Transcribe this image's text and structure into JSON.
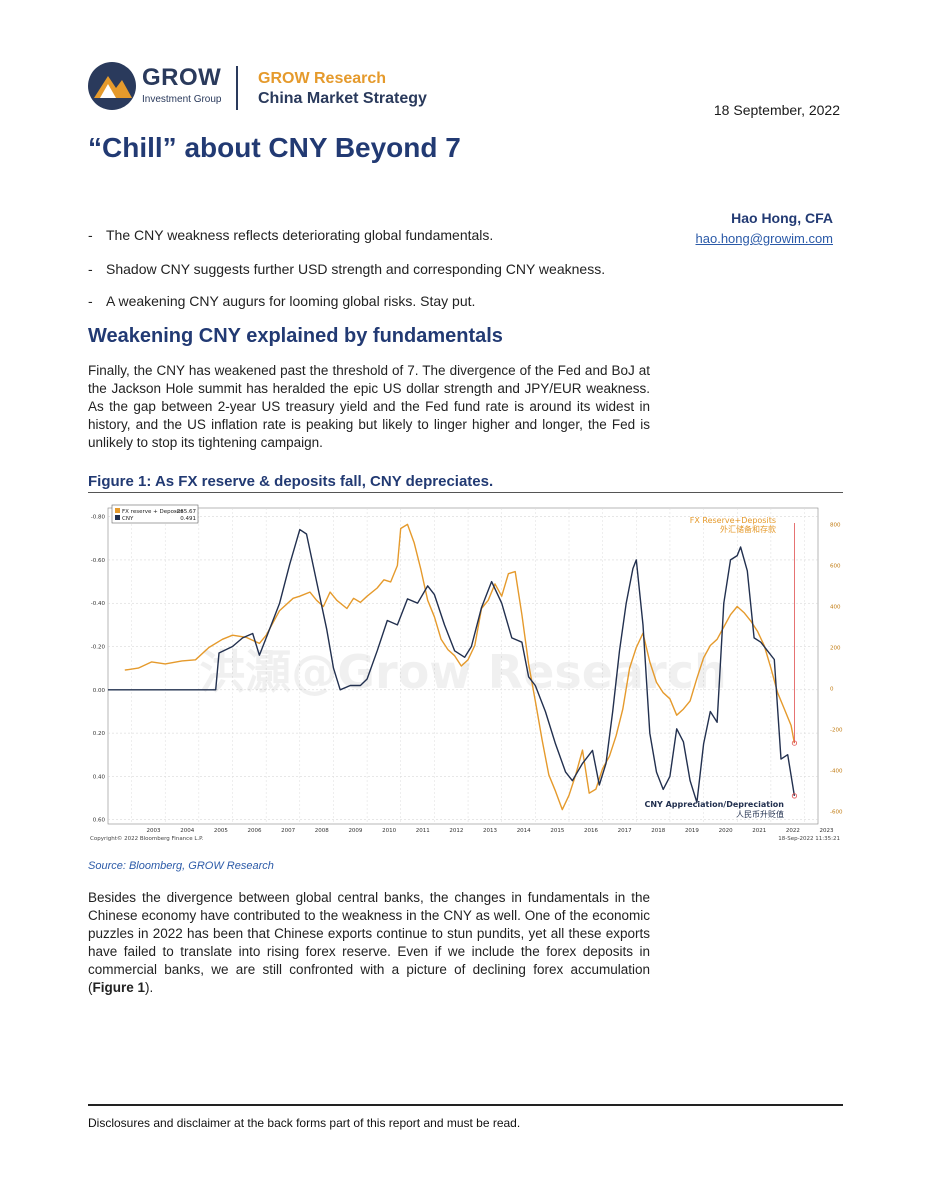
{
  "header": {
    "logo_name": "GROW",
    "logo_sub": "Investment Group",
    "brand_line1": "GROW Research",
    "brand_line2": "China Market Strategy",
    "date": "18 September, 2022",
    "colors": {
      "navy": "#223a73",
      "orange": "#e59a2c"
    }
  },
  "title": "“Chill” about CNY Beyond 7",
  "author": {
    "name": "Hao Hong, CFA",
    "email": "hao.hong@growim.com"
  },
  "bullets": [
    "The CNY weakness reflects deteriorating global fundamentals.",
    "Shadow CNY suggests further USD strength and corresponding CNY weakness.",
    "A weakening CNY augurs for looming global risks. Stay put."
  ],
  "section_heading": "Weakening CNY explained by fundamentals",
  "para1": "Finally, the CNY has weakened past the threshold of 7. The divergence of the Fed and BoJ at the Jackson Hole summit has heralded the epic US dollar strength and JPY/EUR weakness. As the gap between 2-year US treasury yield and the Fed fund rate is around its widest in history, and the US inflation rate is peaking but likely to linger higher and longer, the Fed is unlikely to stop its tightening campaign.",
  "figure_title": "Figure 1: As FX reserve & deposits fall, CNY depreciates.",
  "source": "Source: Bloomberg, GROW Research",
  "para2_before": "Besides the divergence between global central banks, the changes in fundamentals in the Chinese economy have contributed to the weakness in the CNY as well. One of the economic puzzles in 2022 has been that Chinese exports continue to stun pundits, yet all these exports have failed to translate into rising forex reserve. Even if we include the forex deposits in commercial banks, we are still confronted with a picture of declining forex accumulation (",
  "para2_bold": "Figure 1",
  "para2_after": ").",
  "footer": "Disclosures and disclaimer at the back forms part of this report and must be read.",
  "chart_data": {
    "type": "line",
    "title": "",
    "watermark": "洪灝@Grow Research",
    "annotation_top": "FX Reserve+Deposits",
    "annotation_top_cn": "外汇储备和存款",
    "annotation_bottom": "CNY Appreciation/Depreciation",
    "annotation_bottom_cn": "人民币升贬值",
    "legend": [
      {
        "name": "FX reserve + Deposits",
        "value": "-265.67",
        "color": "#e59a2c"
      },
      {
        "name": "CNY",
        "value": "0.491",
        "color": "#22304f"
      }
    ],
    "copyright": "Copyright© 2022 Bloomberg Finance L.P.",
    "timestamp": "18-Sep-2022 11:35:21",
    "x_labels": [
      "2003",
      "2004",
      "2005",
      "2006",
      "2007",
      "2008",
      "2009",
      "2010",
      "2011",
      "2012",
      "2013",
      "2014",
      "2015",
      "2016",
      "2017",
      "2018",
      "2019",
      "2020",
      "2021",
      "2022",
      "2023"
    ],
    "xlim": [
      2002.3,
      2023.4
    ],
    "left_axis": {
      "ylim": [
        -0.84,
        0.62
      ],
      "inverted": true,
      "ticks": [
        "-0.80",
        "-0.60",
        "-0.40",
        "-0.20",
        "0.00",
        "0.20",
        "0.40",
        "0.60"
      ],
      "tick_values": [
        -0.8,
        -0.6,
        -0.4,
        -0.2,
        0,
        0.2,
        0.4,
        0.6
      ]
    },
    "right_axis": {
      "ylim": [
        -660,
        880
      ],
      "ticks": [
        "800",
        "600",
        "400",
        "200",
        "0",
        "-200",
        "-400",
        "-600"
      ],
      "tick_values": [
        800,
        600,
        400,
        200,
        0,
        -200,
        -400,
        -600
      ]
    },
    "series": [
      {
        "name": "FX reserve + Deposits",
        "axis": "right",
        "color": "#e59a2c",
        "x": [
          2002.8,
          2003.2,
          2003.6,
          2004.0,
          2004.5,
          2004.9,
          2005.3,
          2005.7,
          2006.0,
          2006.4,
          2006.8,
          2007.0,
          2007.4,
          2007.8,
          2008.0,
          2008.3,
          2008.5,
          2008.7,
          2008.9,
          2009.1,
          2009.4,
          2009.6,
          2009.8,
          2010.0,
          2010.3,
          2010.5,
          2010.7,
          2010.9,
          2011.0,
          2011.2,
          2011.4,
          2011.6,
          2011.8,
          2012.0,
          2012.2,
          2012.4,
          2012.6,
          2012.8,
          2013.0,
          2013.2,
          2013.4,
          2013.6,
          2013.8,
          2014.0,
          2014.2,
          2014.4,
          2014.6,
          2014.8,
          2015.0,
          2015.2,
          2015.4,
          2015.6,
          2015.8,
          2016.0,
          2016.2,
          2016.4,
          2016.6,
          2016.8,
          2017.0,
          2017.2,
          2017.4,
          2017.6,
          2017.8,
          2018.0,
          2018.2,
          2018.4,
          2018.6,
          2018.8,
          2019.0,
          2019.2,
          2019.4,
          2019.6,
          2019.8,
          2020.0,
          2020.2,
          2020.4,
          2020.6,
          2020.8,
          2021.0,
          2021.2,
          2021.4,
          2021.6,
          2021.8,
          2022.0,
          2022.2,
          2022.4,
          2022.6,
          2022.7
        ],
        "values": [
          90,
          100,
          130,
          120,
          135,
          140,
          200,
          240,
          260,
          250,
          220,
          260,
          380,
          440,
          450,
          470,
          430,
          400,
          470,
          430,
          390,
          440,
          420,
          450,
          490,
          530,
          520,
          600,
          780,
          800,
          710,
          580,
          430,
          350,
          240,
          190,
          160,
          110,
          140,
          210,
          390,
          430,
          510,
          450,
          560,
          570,
          360,
          120,
          -60,
          -250,
          -420,
          -500,
          -590,
          -520,
          -420,
          -300,
          -510,
          -490,
          -390,
          -330,
          -230,
          -100,
          100,
          200,
          270,
          130,
          30,
          -20,
          -50,
          -130,
          -100,
          -60,
          50,
          150,
          210,
          240,
          300,
          360,
          400,
          370,
          330,
          280,
          210,
          100,
          -20,
          -100,
          -180,
          -265.67
        ]
      },
      {
        "name": "CNY",
        "axis": "left",
        "color": "#22304f",
        "x": [
          2002.3,
          2003.0,
          2004.0,
          2005.0,
          2005.5,
          2005.6,
          2006.0,
          2006.3,
          2006.6,
          2006.8,
          2007.0,
          2007.4,
          2007.7,
          2008.0,
          2008.2,
          2008.5,
          2008.8,
          2009.0,
          2009.2,
          2009.5,
          2009.8,
          2010.0,
          2010.3,
          2010.6,
          2010.9,
          2011.2,
          2011.5,
          2011.8,
          2012.0,
          2012.3,
          2012.6,
          2012.9,
          2013.1,
          2013.4,
          2013.7,
          2014.0,
          2014.3,
          2014.6,
          2014.8,
          2015.0,
          2015.3,
          2015.6,
          2015.9,
          2016.1,
          2016.4,
          2016.7,
          2016.9,
          2017.1,
          2017.3,
          2017.5,
          2017.7,
          2017.9,
          2018.0,
          2018.2,
          2018.4,
          2018.6,
          2018.8,
          2019.0,
          2019.2,
          2019.4,
          2019.6,
          2019.8,
          2020.0,
          2020.2,
          2020.4,
          2020.6,
          2020.8,
          2021.0,
          2021.1,
          2021.3,
          2021.5,
          2021.7,
          2021.9,
          2022.1,
          2022.3,
          2022.5,
          2022.7
        ],
        "values": [
          0,
          0,
          0,
          0,
          0,
          -0.17,
          -0.2,
          -0.24,
          -0.26,
          -0.16,
          -0.24,
          -0.4,
          -0.58,
          -0.74,
          -0.72,
          -0.5,
          -0.28,
          -0.1,
          0.0,
          -0.02,
          -0.02,
          -0.05,
          -0.18,
          -0.32,
          -0.3,
          -0.42,
          -0.4,
          -0.48,
          -0.44,
          -0.3,
          -0.18,
          -0.15,
          -0.2,
          -0.38,
          -0.5,
          -0.4,
          -0.24,
          -0.22,
          -0.06,
          -0.02,
          0.1,
          0.25,
          0.38,
          0.42,
          0.34,
          0.28,
          0.44,
          0.34,
          0.1,
          -0.18,
          -0.4,
          -0.56,
          -0.6,
          -0.3,
          0.2,
          0.38,
          0.46,
          0.4,
          0.18,
          0.24,
          0.42,
          0.52,
          0.25,
          0.1,
          0.15,
          -0.4,
          -0.6,
          -0.62,
          -0.66,
          -0.55,
          -0.24,
          -0.22,
          -0.18,
          -0.14,
          0.32,
          0.3,
          0.49
        ]
      }
    ]
  }
}
